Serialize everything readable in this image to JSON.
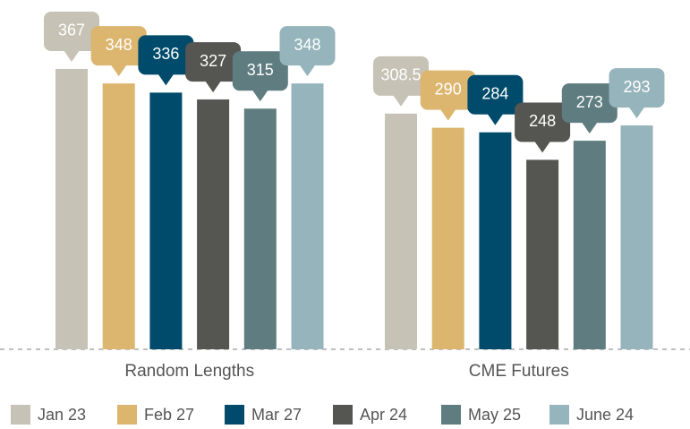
{
  "chart_data": {
    "type": "bar",
    "categories": [
      "Random Lengths",
      "CME Futures"
    ],
    "series": [
      {
        "name": "Jan 23",
        "color": "#c6c2b5",
        "values": [
          367,
          308.5
        ]
      },
      {
        "name": "Feb 27",
        "color": "#dcb56e",
        "values": [
          348,
          290
        ]
      },
      {
        "name": "Mar 27",
        "color": "#004b6b",
        "values": [
          336,
          284
        ]
      },
      {
        "name": "Apr 24",
        "color": "#555552",
        "values": [
          327,
          248
        ]
      },
      {
        "name": "May 25",
        "color": "#5f7d80",
        "values": [
          315,
          273
        ]
      },
      {
        "name": "June 24",
        "color": "#96b4bb",
        "values": [
          348,
          293
        ]
      }
    ],
    "legend": "bottom"
  }
}
